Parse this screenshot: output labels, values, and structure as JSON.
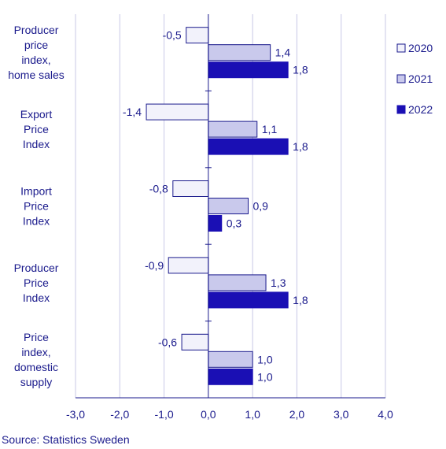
{
  "chart_data": {
    "type": "bar",
    "orientation": "horizontal",
    "categories": [
      [
        "Producer",
        "price",
        "index,",
        "home sales"
      ],
      [
        "Export",
        "Price",
        "Index"
      ],
      [
        "Import",
        "Price",
        "Index"
      ],
      [
        "Producer",
        "Price",
        "Index"
      ],
      [
        "Price",
        "index,",
        "domestic",
        "supply"
      ]
    ],
    "series": [
      {
        "name": "2020",
        "values": [
          -0.5,
          -1.4,
          -0.8,
          -0.9,
          -0.6
        ],
        "labels": [
          "-0,5",
          "-1,4",
          "-0,8",
          "-0,9",
          "-0,6"
        ],
        "fill": "#f2f2fb",
        "stroke": "#1a1a8c"
      },
      {
        "name": "2021",
        "values": [
          1.4,
          1.1,
          0.9,
          1.3,
          1.0
        ],
        "labels": [
          "1,4",
          "1,1",
          "0,9",
          "1,3",
          "1,0"
        ],
        "fill": "#c9c9ec",
        "stroke": "#1a1a8c"
      },
      {
        "name": "2022",
        "values": [
          1.8,
          1.8,
          0.3,
          1.8,
          1.0
        ],
        "labels": [
          "1,8",
          "1,8",
          "0,3",
          "1,8",
          "1,0"
        ],
        "fill": "#1a0fb4",
        "stroke": "#1a0fb4"
      }
    ],
    "xlim": [
      -3.0,
      4.0
    ],
    "xticks": [
      -3.0,
      -2.0,
      -1.0,
      0.0,
      1.0,
      2.0,
      3.0,
      4.0
    ],
    "xtick_labels": [
      "-3,0",
      "-2,0",
      "-1,0",
      "0,0",
      "1,0",
      "2,0",
      "3,0",
      "4,0"
    ],
    "grid": "vertical",
    "legend_position": "right",
    "xlabel": "",
    "ylabel": "",
    "source": "Source: Statistics Sweden"
  }
}
